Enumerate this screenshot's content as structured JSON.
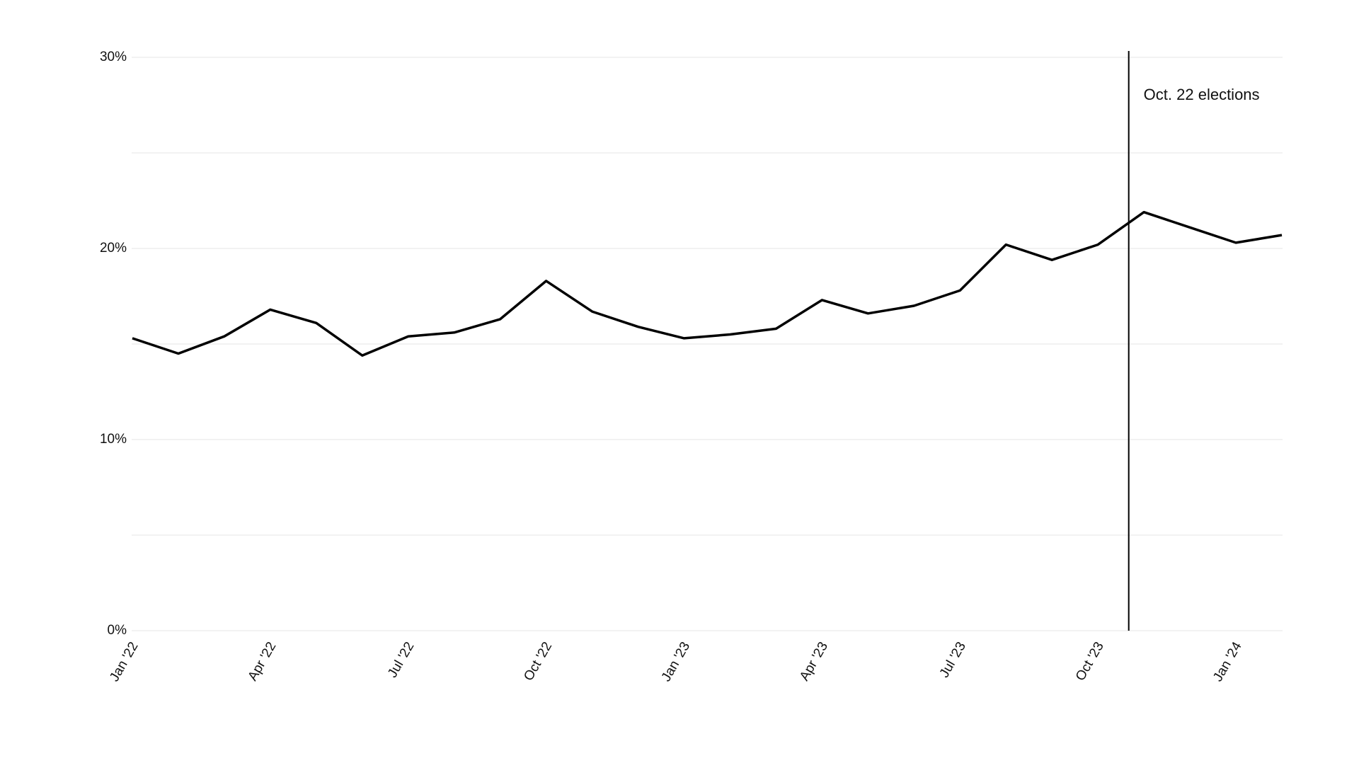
{
  "chart_data": {
    "type": "line",
    "categories": [
      "Jan '22",
      null,
      null,
      "Apr '22",
      null,
      null,
      "Jul '22",
      null,
      null,
      "Oct '22",
      null,
      null,
      "Jan '23",
      null,
      null,
      "Apr '23",
      null,
      null,
      "Jul '23",
      null,
      null,
      "Oct '23",
      null,
      null,
      "Jan '24",
      null
    ],
    "series": [
      {
        "color": "#000000",
        "values": [
          15.3,
          14.5,
          15.4,
          16.8,
          16.1,
          14.4,
          15.4,
          15.6,
          16.3,
          18.3,
          16.7,
          15.9,
          15.3,
          15.5,
          15.8,
          17.3,
          16.6,
          17.0,
          17.8,
          20.2,
          19.4,
          20.2,
          21.9,
          21.1,
          20.3,
          20.7
        ]
      }
    ],
    "ylim": [
      0,
      30
    ],
    "yticks": [
      {
        "value": 0,
        "label": "0%"
      },
      {
        "value": 5,
        "label": null
      },
      {
        "value": 10,
        "label": "10%"
      },
      {
        "value": 15,
        "label": null
      },
      {
        "value": 20,
        "label": "20%"
      },
      {
        "value": 25,
        "label": null
      },
      {
        "value": 30,
        "label": "30%"
      }
    ],
    "grid": true,
    "annotation": "Oct. 22 elections"
  }
}
